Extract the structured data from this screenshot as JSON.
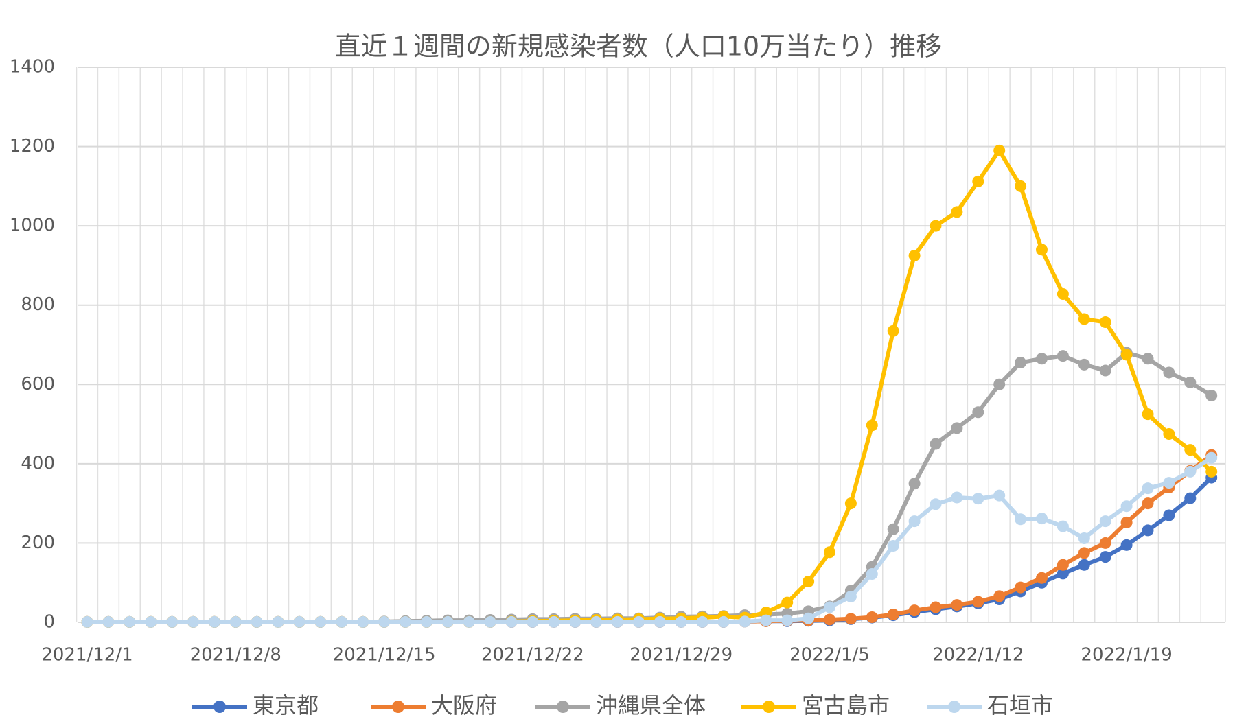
{
  "chart_data": {
    "type": "line",
    "title": "直近１週間の新規感染者数（人口10万当たり）推移",
    "categories": [
      "2021/12/1",
      null,
      null,
      null,
      null,
      null,
      null,
      "2021/12/8",
      null,
      null,
      null,
      null,
      null,
      null,
      "2021/12/15",
      null,
      null,
      null,
      null,
      null,
      null,
      "2021/12/22",
      null,
      null,
      null,
      null,
      null,
      null,
      "2021/12/29",
      null,
      null,
      null,
      null,
      null,
      null,
      "2022/1/5",
      null,
      null,
      null,
      null,
      null,
      null,
      "2022/1/12",
      null,
      null,
      null,
      null,
      null,
      null,
      "2022/1/19",
      null,
      null,
      null,
      null
    ],
    "series": [
      {
        "name": "東京都",
        "color": "#4472c4",
        "values": [
          1,
          1,
          1,
          1,
          1,
          1,
          1,
          1,
          1,
          1,
          1,
          1,
          1,
          1,
          1,
          1,
          1,
          1,
          1,
          1,
          1,
          1,
          1,
          1,
          1,
          1,
          1,
          1,
          1,
          1,
          1,
          2,
          3,
          3,
          4,
          5,
          8,
          12,
          18,
          26,
          33,
          40,
          48,
          58,
          78,
          100,
          123,
          145,
          165,
          195,
          232,
          270,
          313,
          365
        ]
      },
      {
        "name": "大阪府",
        "color": "#ed7d31",
        "values": [
          1,
          1,
          1,
          1,
          1,
          1,
          1,
          1,
          1,
          1,
          1,
          1,
          1,
          1,
          1,
          1,
          1,
          1,
          1,
          1,
          1,
          1,
          1,
          1,
          1,
          1,
          1,
          1,
          1,
          1,
          1,
          2,
          3,
          4,
          5,
          7,
          9,
          13,
          20,
          30,
          38,
          44,
          52,
          66,
          88,
          112,
          145,
          175,
          200,
          252,
          300,
          340,
          382,
          422
        ]
      },
      {
        "name": "沖縄県全体",
        "color": "#a5a5a5",
        "values": [
          1,
          1,
          1,
          1,
          1,
          1,
          1,
          1,
          1,
          1,
          1,
          1,
          1,
          1,
          2,
          3,
          4,
          5,
          5,
          6,
          7,
          8,
          8,
          9,
          9,
          10,
          10,
          12,
          14,
          15,
          16,
          18,
          20,
          22,
          28,
          40,
          80,
          140,
          235,
          350,
          450,
          490,
          530,
          600,
          655,
          665,
          672,
          650,
          635,
          680,
          665,
          630,
          605,
          572
        ]
      },
      {
        "name": "宮古島市",
        "color": "#ffc000",
        "values": [
          1,
          1,
          1,
          1,
          1,
          1,
          1,
          1,
          1,
          1,
          1,
          1,
          1,
          1,
          1,
          1,
          1,
          1,
          1,
          1,
          2,
          3,
          4,
          5,
          6,
          7,
          8,
          9,
          10,
          12,
          15,
          12,
          25,
          50,
          103,
          177,
          300,
          497,
          735,
          925,
          1000,
          1035,
          1112,
          1190,
          1100,
          940,
          828,
          765,
          757,
          675,
          525,
          475,
          435,
          380
        ]
      },
      {
        "name": "石垣市",
        "color": "#bdd7ee",
        "values": [
          1,
          1,
          1,
          1,
          1,
          1,
          1,
          1,
          1,
          1,
          1,
          1,
          1,
          1,
          1,
          1,
          1,
          1,
          1,
          1,
          1,
          1,
          1,
          1,
          1,
          1,
          1,
          1,
          1,
          1,
          1,
          2,
          5,
          5,
          10,
          38,
          65,
          122,
          193,
          255,
          298,
          315,
          312,
          320,
          260,
          262,
          242,
          212,
          255,
          293,
          338,
          352,
          380,
          415
        ]
      }
    ],
    "ylim": [
      0,
      1400
    ],
    "yticks": [
      0,
      200,
      400,
      600,
      800,
      1000,
      1200,
      1400
    ],
    "grid": true
  }
}
